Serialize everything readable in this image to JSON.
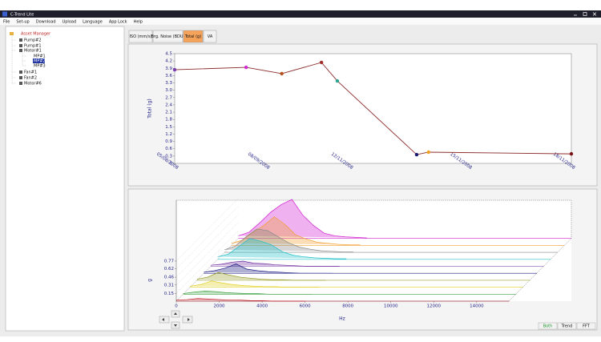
{
  "window": {
    "title": "C-Trend Lite"
  },
  "menu": [
    "File",
    "Set-up",
    "Download",
    "Upload",
    "Language",
    "App Lock",
    "Help"
  ],
  "tree": [
    "Asset Manager",
    "Pump#2",
    "Pump#1",
    "Motor#1",
    "MP#1",
    "MP#2",
    "MP#3",
    "Fan#1",
    "Fan#2",
    "Motor#6"
  ],
  "tabs": [
    "ISO (mm/s)",
    "Brg. Noise (BDU)",
    "Total (g)",
    "VA"
  ],
  "view_buttons": [
    "Both",
    "Trend",
    "FFT"
  ],
  "chart_data": [
    {
      "type": "line",
      "y_label": "Total (g)",
      "color": "#8b2a2a",
      "x": [
        0,
        18,
        27,
        37,
        41,
        61,
        64,
        100
      ],
      "values": [
        3.84,
        3.94,
        3.68,
        4.14,
        3.38,
        0.36,
        0.46,
        0.39
      ],
      "point_colors": [
        "#7a3fb0",
        "#d02ad0",
        "#b5521e",
        "#a0302a",
        "#2ea58f",
        "#1a1a70",
        "#f0a020",
        "#7a1010"
      ],
      "xlim": [
        0,
        100
      ],
      "xticks": [
        {
          "value": 0,
          "label": "05/08/2008"
        },
        {
          "value": 23,
          "label": "08/09/2008"
        },
        {
          "value": 44,
          "label": "12/11/2008"
        },
        {
          "value": 74,
          "label": "15/11/2008"
        },
        {
          "value": 100,
          "label": "18/11/2008"
        }
      ],
      "ylim": [
        0,
        4.5
      ],
      "yticks": [
        0,
        0.3,
        0.6,
        0.9,
        1.2,
        1.5,
        1.8,
        2.1,
        2.4,
        2.7,
        {
          "value": 3,
          "label": "3.0"
        },
        3.3,
        3.6,
        3.9,
        4.2,
        4.5
      ]
    },
    {
      "type": "waterfall",
      "x_label": "Hz",
      "y_label": "g",
      "x": [
        0,
        500,
        1000,
        1500,
        2000,
        2500,
        3000,
        3500,
        4000,
        4500,
        5000,
        5500,
        6000
      ],
      "xlim": [
        0,
        15500
      ],
      "xticks": [
        0,
        2000,
        4000,
        6000,
        8000,
        10000,
        12000,
        14000
      ],
      "ylim": [
        0,
        0.8
      ],
      "yticks": [
        0.15,
        0.31,
        0.46,
        0.62,
        0.77
      ],
      "series": [
        {
          "color": "#c0202a",
          "values": [
            0.02,
            0.03,
            0.05,
            0.04,
            0.03,
            0.02,
            0.02,
            0.01,
            0.01,
            0,
            0,
            0,
            0
          ]
        },
        {
          "color": "#3aa040",
          "values": [
            0.01,
            0.04,
            0.06,
            0.05,
            0.03,
            0.02,
            0.01,
            0.01,
            0,
            0,
            0,
            0,
            0
          ]
        },
        {
          "color": "#e0d020",
          "values": [
            0.02,
            0.05,
            0.12,
            0.08,
            0.05,
            0.03,
            0.02,
            0.01,
            0.01,
            0,
            0,
            0,
            0
          ]
        },
        {
          "color": "#9aa030",
          "values": [
            0.02,
            0.06,
            0.15,
            0.1,
            0.06,
            0.04,
            0.02,
            0.01,
            0.01,
            0,
            0,
            0,
            0
          ]
        },
        {
          "color": "#1a1a80",
          "values": [
            0.02,
            0.05,
            0.1,
            0.18,
            0.08,
            0.05,
            0.03,
            0.02,
            0.01,
            0,
            0,
            0,
            0
          ]
        },
        {
          "color": "#7030a0",
          "values": [
            0.02,
            0.04,
            0.08,
            0.1,
            0.06,
            0.05,
            0.03,
            0.02,
            0.01,
            0,
            0,
            0,
            0
          ]
        },
        {
          "color": "#20c0c8",
          "values": [
            0.05,
            0.1,
            0.25,
            0.4,
            0.35,
            0.28,
            0.15,
            0.08,
            0.05,
            0.03,
            0.02,
            0.01,
            0.01
          ]
        },
        {
          "color": "#8a8a8a",
          "values": [
            0.05,
            0.12,
            0.3,
            0.45,
            0.42,
            0.3,
            0.18,
            0.1,
            0.06,
            0.03,
            0.02,
            0.01,
            0.01
          ]
        },
        {
          "color": "#f0a030",
          "values": [
            0.04,
            0.1,
            0.25,
            0.38,
            0.55,
            0.4,
            0.2,
            0.12,
            0.06,
            0.04,
            0.02,
            0.01,
            0.01
          ]
        },
        {
          "color": "#d020d0",
          "values": [
            0.05,
            0.12,
            0.3,
            0.5,
            0.65,
            0.75,
            0.45,
            0.25,
            0.1,
            0.05,
            0.03,
            0.02,
            0.01
          ]
        }
      ]
    }
  ]
}
